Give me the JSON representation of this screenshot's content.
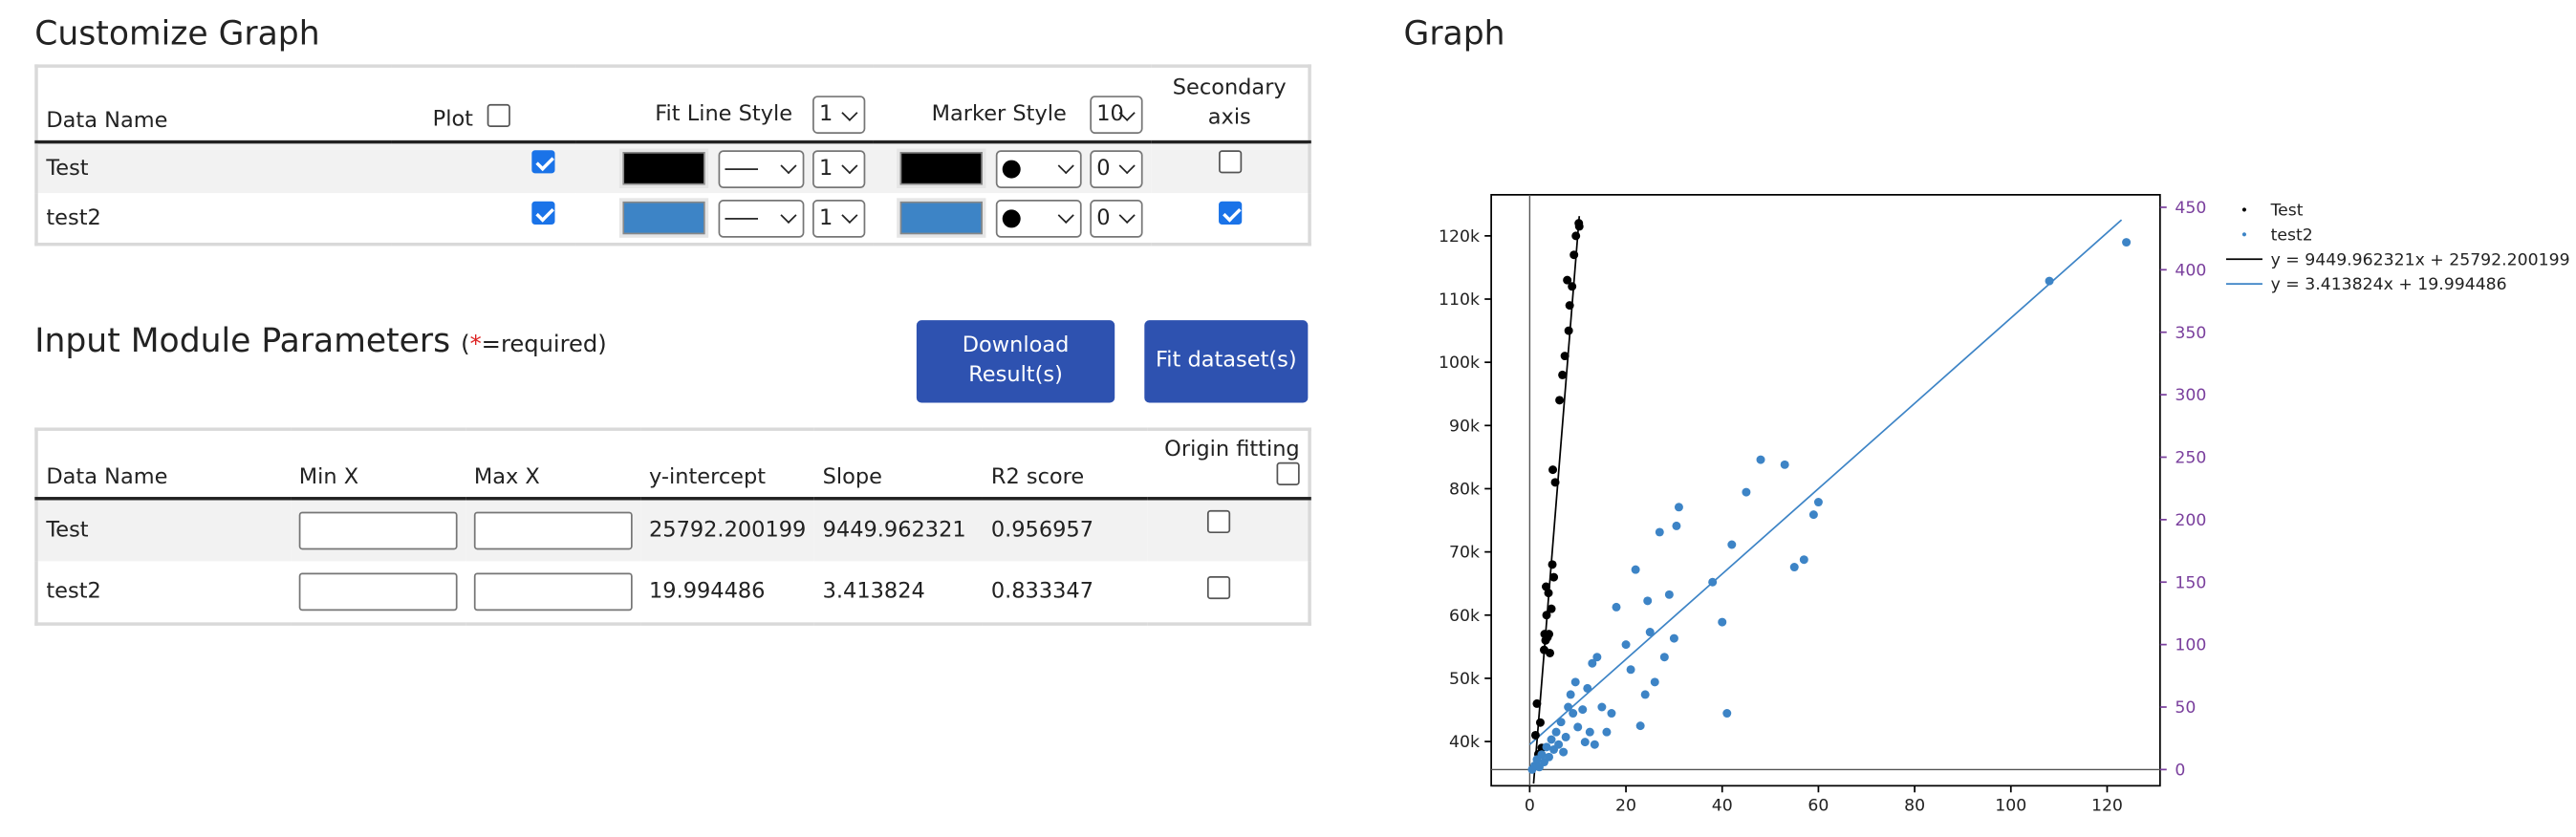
{
  "customize": {
    "title": "Customize Graph",
    "headers": {
      "data_name": "Data Name",
      "plot": "Plot",
      "fit_line_style": "Fit Line Style",
      "fit_width": "1",
      "marker_style": "Marker Style",
      "marker_size": "10",
      "secondary_line1": "Secondary",
      "secondary_line2": "axis"
    },
    "rows": [
      {
        "name": "Test",
        "plot": true,
        "line_color": "#000000",
        "line_width": "1",
        "marker_color": "#000000",
        "marker_size": "0",
        "secondary": false
      },
      {
        "name": "test2",
        "plot": true,
        "line_color": "#3d84c6",
        "line_width": "1",
        "marker_color": "#3d84c6",
        "marker_size": "0",
        "secondary": true
      }
    ]
  },
  "params": {
    "title": "Input Module Parameters",
    "req_open": "(",
    "req_star": "*",
    "req_text": "=required)",
    "download_line1": "Download",
    "download_line2": "Result(s)",
    "fit_label": "Fit dataset(s)",
    "headers": {
      "data_name": "Data Name",
      "min_x": "Min X",
      "max_x": "Max X",
      "intercept": "y-intercept",
      "slope": "Slope",
      "r2": "R2 score",
      "origin": "Origin fitting"
    },
    "rows": [
      {
        "name": "Test",
        "intercept": "25792.200199",
        "slope": "9449.962321",
        "r2": "0.956957"
      },
      {
        "name": "test2",
        "intercept": "19.994486",
        "slope": "3.413824",
        "r2": "0.833347"
      }
    ]
  },
  "graph": {
    "title": "Graph"
  },
  "chart_data": {
    "type": "scatter",
    "grid": false,
    "legend_position": "right",
    "xlim": [
      -8,
      131
    ],
    "ylim": [
      33000,
      126500
    ],
    "y2lim": [
      -13,
      460
    ],
    "x_ticks": [
      0,
      20,
      40,
      60,
      80,
      100,
      120
    ],
    "y_ticks": [
      40000,
      50000,
      60000,
      70000,
      80000,
      90000,
      100000,
      110000,
      120000
    ],
    "y_tick_labels": [
      "40k",
      "50k",
      "60k",
      "70k",
      "80k",
      "90k",
      "100k",
      "110k",
      "120k"
    ],
    "y2_ticks": [
      0,
      50,
      100,
      150,
      200,
      250,
      300,
      350,
      400,
      450
    ],
    "y2_color": "#7a3f9d",
    "series": [
      {
        "name": "Test",
        "axis": "y",
        "color": "#000000",
        "points": [
          [
            1.2,
            41000
          ],
          [
            1.5,
            46000
          ],
          [
            1.8,
            38000
          ],
          [
            2.2,
            43000
          ],
          [
            2.5,
            39000
          ],
          [
            3.0,
            54500
          ],
          [
            3.1,
            57000
          ],
          [
            3.3,
            56000
          ],
          [
            3.4,
            64500
          ],
          [
            3.5,
            60000
          ],
          [
            3.7,
            56500
          ],
          [
            3.9,
            63500
          ],
          [
            4.0,
            57000
          ],
          [
            4.2,
            54000
          ],
          [
            4.5,
            61000
          ],
          [
            4.7,
            68000
          ],
          [
            4.8,
            83000
          ],
          [
            5.0,
            66000
          ],
          [
            5.3,
            81000
          ],
          [
            6.2,
            94000
          ],
          [
            6.8,
            98000
          ],
          [
            7.3,
            101000
          ],
          [
            7.8,
            113000
          ],
          [
            8.1,
            105000
          ],
          [
            8.3,
            109000
          ],
          [
            8.8,
            112000
          ],
          [
            9.2,
            117000
          ],
          [
            9.6,
            120000
          ],
          [
            10.2,
            122000
          ],
          [
            10.3,
            121500
          ]
        ]
      },
      {
        "name": "test2",
        "axis": "y2",
        "color": "#3d84c6",
        "points": [
          [
            0.5,
            0
          ],
          [
            1,
            3
          ],
          [
            1.5,
            8
          ],
          [
            2,
            2
          ],
          [
            2.5,
            12
          ],
          [
            3,
            6
          ],
          [
            3.5,
            18
          ],
          [
            4,
            10
          ],
          [
            4.5,
            24
          ],
          [
            5,
            16
          ],
          [
            5.5,
            30
          ],
          [
            6,
            20
          ],
          [
            6.5,
            38
          ],
          [
            7,
            14
          ],
          [
            7.5,
            26
          ],
          [
            8,
            50
          ],
          [
            8.5,
            60
          ],
          [
            9,
            45
          ],
          [
            9.5,
            70
          ],
          [
            10,
            34
          ],
          [
            11,
            48
          ],
          [
            11.5,
            22
          ],
          [
            12,
            65
          ],
          [
            12.5,
            30
          ],
          [
            13,
            85
          ],
          [
            13.5,
            20
          ],
          [
            14,
            90
          ],
          [
            15,
            50
          ],
          [
            16,
            30
          ],
          [
            17,
            45
          ],
          [
            18,
            130
          ],
          [
            20,
            100
          ],
          [
            21,
            80
          ],
          [
            22,
            160
          ],
          [
            23,
            35
          ],
          [
            24,
            60
          ],
          [
            24.5,
            135
          ],
          [
            25,
            110
          ],
          [
            26,
            70
          ],
          [
            27,
            190
          ],
          [
            28,
            90
          ],
          [
            29,
            140
          ],
          [
            30,
            105
          ],
          [
            30.5,
            195
          ],
          [
            31,
            210
          ],
          [
            38,
            150
          ],
          [
            40,
            118
          ],
          [
            41,
            45
          ],
          [
            42,
            180
          ],
          [
            45,
            222
          ],
          [
            48,
            248
          ],
          [
            53,
            244
          ],
          [
            55,
            162
          ],
          [
            57,
            168
          ],
          [
            59,
            204
          ],
          [
            60,
            214
          ],
          [
            108,
            391
          ],
          [
            124,
            422
          ]
        ]
      }
    ],
    "fit_lines": [
      {
        "label": "y = 9449.962321x + 25792.200199",
        "slope": 9449.962321,
        "intercept": 25792.200199,
        "axis": "y",
        "color": "#000000",
        "x_range": [
          0.8,
          10.3
        ]
      },
      {
        "label": "y = 3.413824x + 19.994486",
        "slope": 3.413824,
        "intercept": 19.994486,
        "axis": "y2",
        "color": "#3d84c6",
        "x_range": [
          0,
          123
        ]
      }
    ]
  }
}
